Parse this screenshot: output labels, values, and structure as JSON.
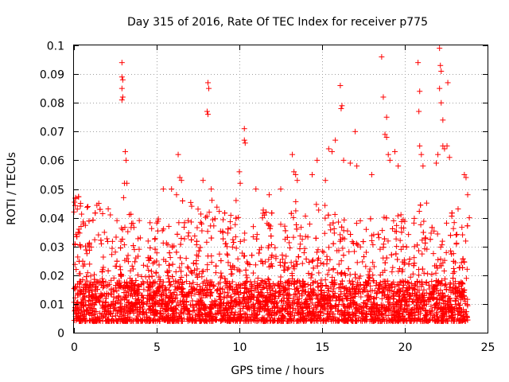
{
  "chart_data": {
    "type": "scatter",
    "title": "Day 315 of 2016, Rate Of TEC Index for receiver p775",
    "xlabel": "GPS time / hours",
    "ylabel": "ROTI / TECUs",
    "xlim": [
      0,
      25
    ],
    "ylim": [
      0,
      0.1
    ],
    "xticks": [
      "0",
      "5",
      "10",
      "15",
      "20",
      "25"
    ],
    "yticks": [
      "0",
      "0.01",
      "0.02",
      "0.03",
      "0.04",
      "0.05",
      "0.06",
      "0.07",
      "0.08",
      "0.09",
      "0.1"
    ],
    "grid": true,
    "marker": "+",
    "color": "#ff0000",
    "series": [
      {
        "name": "ROTI",
        "points": [
          [
            0.0,
            0.042
          ],
          [
            0.1,
            0.047
          ],
          [
            0.2,
            0.043
          ],
          [
            0.3,
            0.036
          ],
          [
            0.4,
            0.045
          ],
          [
            1.5,
            0.045
          ],
          [
            2.2,
            0.041
          ],
          [
            2.6,
            0.039
          ],
          [
            2.9,
            0.094
          ],
          [
            2.9,
            0.089
          ],
          [
            2.9,
            0.085
          ],
          [
            2.9,
            0.081
          ],
          [
            2.95,
            0.088
          ],
          [
            2.95,
            0.082
          ],
          [
            3.1,
            0.063
          ],
          [
            3.15,
            0.06
          ],
          [
            3.05,
            0.052
          ],
          [
            3.2,
            0.052
          ],
          [
            3.0,
            0.047
          ],
          [
            5.4,
            0.05
          ],
          [
            5.9,
            0.05
          ],
          [
            6.2,
            0.048
          ],
          [
            6.3,
            0.062
          ],
          [
            6.4,
            0.054
          ],
          [
            6.5,
            0.053
          ],
          [
            7.5,
            0.043
          ],
          [
            7.8,
            0.053
          ],
          [
            8.1,
            0.087
          ],
          [
            8.15,
            0.085
          ],
          [
            8.05,
            0.077
          ],
          [
            8.1,
            0.076
          ],
          [
            8.3,
            0.05
          ],
          [
            9.8,
            0.046
          ],
          [
            10.0,
            0.056
          ],
          [
            10.05,
            0.052
          ],
          [
            10.3,
            0.071
          ],
          [
            10.3,
            0.067
          ],
          [
            10.35,
            0.066
          ],
          [
            11.0,
            0.05
          ],
          [
            11.8,
            0.048
          ],
          [
            12.5,
            0.05
          ],
          [
            13.2,
            0.062
          ],
          [
            13.3,
            0.056
          ],
          [
            13.4,
            0.055
          ],
          [
            13.5,
            0.053
          ],
          [
            14.4,
            0.055
          ],
          [
            14.7,
            0.06
          ],
          [
            15.2,
            0.053
          ],
          [
            15.4,
            0.064
          ],
          [
            15.6,
            0.063
          ],
          [
            15.8,
            0.067
          ],
          [
            16.1,
            0.086
          ],
          [
            16.2,
            0.079
          ],
          [
            16.15,
            0.078
          ],
          [
            16.3,
            0.06
          ],
          [
            16.7,
            0.059
          ],
          [
            17.0,
            0.07
          ],
          [
            17.1,
            0.058
          ],
          [
            18.0,
            0.055
          ],
          [
            18.6,
            0.096
          ],
          [
            18.7,
            0.082
          ],
          [
            18.9,
            0.075
          ],
          [
            18.8,
            0.069
          ],
          [
            18.9,
            0.068
          ],
          [
            19.0,
            0.062
          ],
          [
            19.1,
            0.06
          ],
          [
            19.4,
            0.063
          ],
          [
            19.6,
            0.058
          ],
          [
            20.8,
            0.094
          ],
          [
            20.9,
            0.084
          ],
          [
            20.85,
            0.077
          ],
          [
            20.9,
            0.065
          ],
          [
            21.0,
            0.062
          ],
          [
            21.1,
            0.058
          ],
          [
            21.9,
            0.059
          ],
          [
            22.0,
            0.062
          ],
          [
            22.1,
            0.099
          ],
          [
            22.15,
            0.093
          ],
          [
            22.2,
            0.091
          ],
          [
            22.1,
            0.085
          ],
          [
            22.2,
            0.08
          ],
          [
            22.3,
            0.074
          ],
          [
            22.3,
            0.065
          ],
          [
            22.4,
            0.064
          ],
          [
            22.6,
            0.087
          ],
          [
            22.55,
            0.065
          ],
          [
            22.7,
            0.061
          ],
          [
            23.6,
            0.055
          ],
          [
            23.7,
            0.054
          ],
          [
            23.8,
            0.048
          ],
          [
            23.9,
            0.04
          ]
        ]
      }
    ]
  }
}
